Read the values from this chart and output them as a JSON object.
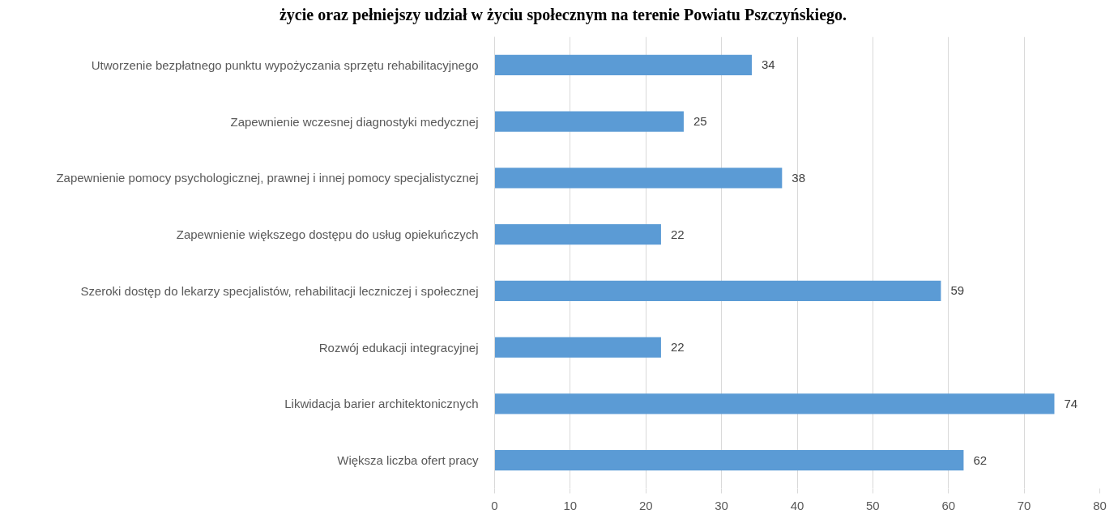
{
  "chart_data": {
    "type": "bar",
    "orientation": "horizontal",
    "title": "życie oraz pełniejszy udział w życiu społecznym na terenie Powiatu Pszczyńskiego.",
    "categories": [
      "Utworzenie bezpłatnego punktu wypożyczania sprzętu rehabilitacyjnego",
      "Zapewnienie wczesnej diagnostyki medycznej",
      "Zapewnienie pomocy psychologicznej, prawnej i innej pomocy specjalistycznej",
      "Zapewnienie większego dostępu do usług opiekuńczych",
      "Szeroki dostęp do lekarzy specjalistów, rehabilitacji leczniczej i społecznej",
      "Rozwój edukacji integracyjnej",
      "Likwidacja barier architektonicznych",
      "Większa liczba ofert pracy"
    ],
    "values": [
      34,
      25,
      38,
      22,
      59,
      22,
      74,
      62
    ],
    "color": "#5b9bd5",
    "xlim": [
      0,
      80
    ],
    "xticks": [
      0,
      10,
      20,
      30,
      40,
      50,
      60,
      70,
      80
    ],
    "grid": "x",
    "data_labels": true
  }
}
